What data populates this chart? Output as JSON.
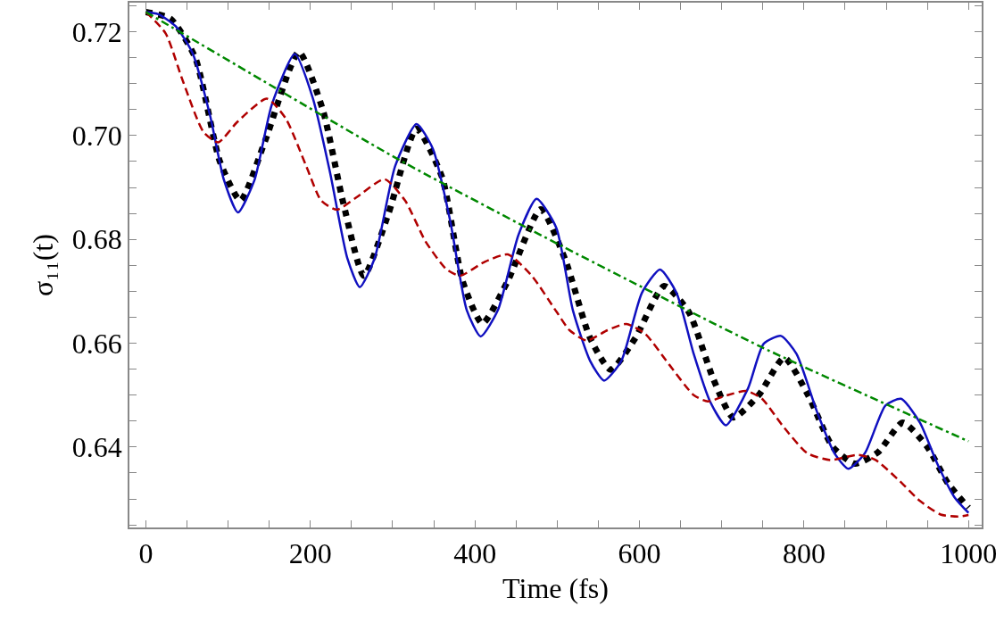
{
  "chart_data": {
    "type": "line",
    "xlabel": "Time (fs)",
    "ylabel": "σ₁₁(t)",
    "xlim": [
      -20,
      1016
    ],
    "ylim": [
      0.6245,
      0.7256
    ],
    "xticks": [
      0,
      {
        "value": 50,
        "label": null
      },
      {
        "value": 100,
        "label": null
      },
      {
        "value": 150,
        "label": null
      },
      200,
      {
        "value": 250,
        "label": null
      },
      {
        "value": 300,
        "label": null
      },
      {
        "value": 350,
        "label": null
      },
      400,
      {
        "value": 450,
        "label": null
      },
      {
        "value": 500,
        "label": null
      },
      {
        "value": 550,
        "label": null
      },
      600,
      {
        "value": 650,
        "label": null
      },
      {
        "value": 700,
        "label": null
      },
      {
        "value": 750,
        "label": null
      },
      800,
      {
        "value": 850,
        "label": null
      },
      {
        "value": 900,
        "label": null
      },
      {
        "value": 950,
        "label": null
      },
      1000
    ],
    "yticks": [
      {
        "value": 0.625,
        "label": null
      },
      {
        "value": 0.63,
        "label": null
      },
      {
        "value": 0.635,
        "label": null
      },
      {
        "value": 0.64,
        "label": "0.64"
      },
      {
        "value": 0.645,
        "label": null
      },
      {
        "value": 0.65,
        "label": null
      },
      {
        "value": 0.655,
        "label": null
      },
      {
        "value": 0.66,
        "label": "0.66"
      },
      {
        "value": 0.665,
        "label": null
      },
      {
        "value": 0.67,
        "label": null
      },
      {
        "value": 0.675,
        "label": null
      },
      {
        "value": 0.68,
        "label": "0.68"
      },
      {
        "value": 0.685,
        "label": null
      },
      {
        "value": 0.69,
        "label": null
      },
      {
        "value": 0.695,
        "label": null
      },
      {
        "value": 0.7,
        "label": "0.70"
      },
      {
        "value": 0.705,
        "label": null
      },
      {
        "value": 0.71,
        "label": null
      },
      {
        "value": 0.715,
        "label": null
      },
      {
        "value": 0.72,
        "label": "0.72"
      },
      {
        "value": 0.725,
        "label": null
      }
    ],
    "grid": false,
    "series": [
      {
        "color": "#1010c0",
        "line_style": "solid",
        "x": [
          0,
          15,
          36,
          57,
          78,
          95,
          112,
          132,
          153,
          181,
          203,
          224,
          245,
          260,
          278,
          303,
          329,
          349,
          370,
          390,
          407,
          428,
          453,
          475,
          499,
          519,
          540,
          557,
          578,
          603,
          625,
          645,
          666,
          686,
          705,
          732,
          751,
          772,
          791,
          816,
          837,
          854,
          874,
          899,
          918,
          941,
          962,
          983,
          1000
        ],
        "values": [
          0.7238,
          0.7234,
          0.7211,
          0.7158,
          0.7039,
          0.6914,
          0.6852,
          0.6914,
          0.7059,
          0.7157,
          0.7072,
          0.6928,
          0.6763,
          0.6708,
          0.6763,
          0.6941,
          0.7022,
          0.6974,
          0.6835,
          0.6664,
          0.6613,
          0.6664,
          0.6809,
          0.6878,
          0.6822,
          0.6664,
          0.6566,
          0.6528,
          0.6566,
          0.6697,
          0.6742,
          0.6697,
          0.6579,
          0.6487,
          0.6442,
          0.6513,
          0.6599,
          0.6614,
          0.6579,
          0.6467,
          0.6388,
          0.6358,
          0.6388,
          0.648,
          0.6493,
          0.6447,
          0.6368,
          0.6303,
          0.6273
        ]
      },
      {
        "color": "#b00000",
        "line_style": "dashed",
        "x": [
          0,
          24,
          45,
          70,
          88,
          111,
          147,
          170,
          195,
          213,
          232,
          257,
          290,
          315,
          340,
          365,
          382,
          411,
          440,
          469,
          499,
          515,
          536,
          561,
          584,
          607,
          636,
          666,
          683,
          707,
          730,
          749,
          774,
          804,
          832,
          866,
          887,
          916,
          941,
          966,
          987,
          1000
        ],
        "values": [
          0.7238,
          0.7197,
          0.7105,
          0.7007,
          0.6987,
          0.7026,
          0.7071,
          0.7033,
          0.6941,
          0.6875,
          0.6857,
          0.6882,
          0.6916,
          0.6875,
          0.6796,
          0.6743,
          0.673,
          0.6756,
          0.6771,
          0.673,
          0.6661,
          0.6625,
          0.6605,
          0.6625,
          0.6637,
          0.6618,
          0.6559,
          0.65,
          0.6488,
          0.65,
          0.6508,
          0.6493,
          0.6441,
          0.6388,
          0.6375,
          0.6385,
          0.6375,
          0.6335,
          0.6296,
          0.627,
          0.6266,
          0.6269
        ]
      },
      {
        "color": "#008800",
        "line_style": "dashdot",
        "x": [
          0,
          40,
          157,
          307,
          507,
          749,
          1000
        ],
        "values": [
          0.7238,
          0.7201,
          0.7092,
          0.6954,
          0.6786,
          0.6592,
          0.6411
        ]
      },
      {
        "color": "#000000",
        "line_style": "dotted",
        "x": [
          0,
          30,
          60,
          90,
          115,
          145,
          186,
          215,
          240,
          265,
          295,
          329,
          360,
          385,
          409,
          440,
          480,
          510,
          540,
          565,
          595,
          630,
          660,
          690,
          714,
          745,
          776,
          805,
          835,
          862,
          890,
          920,
          950,
          975,
          1000
        ],
        "values": [
          0.7238,
          0.7225,
          0.715,
          0.695,
          0.6875,
          0.699,
          0.7161,
          0.705,
          0.687,
          0.673,
          0.685,
          0.7013,
          0.692,
          0.672,
          0.6638,
          0.672,
          0.6858,
          0.676,
          0.661,
          0.6549,
          0.661,
          0.671,
          0.666,
          0.653,
          0.6457,
          0.65,
          0.6572,
          0.65,
          0.64,
          0.6368,
          0.639,
          0.6447,
          0.64,
          0.633,
          0.6283
        ]
      }
    ]
  }
}
